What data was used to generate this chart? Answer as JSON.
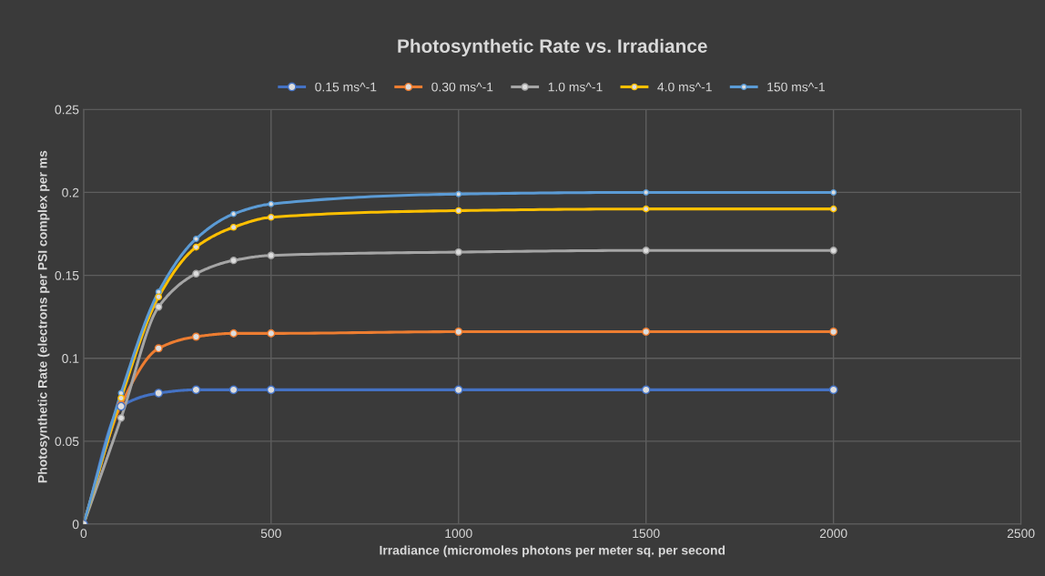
{
  "chart_data": {
    "type": "line",
    "title": "Photosynthetic Rate vs. Irradiance",
    "xlabel": "Irradiance (micromoles photons per meter sq. per second",
    "ylabel": "Photosynthetic Rate (electrons per PSI complex per ms",
    "x": [
      0,
      100,
      200,
      300,
      400,
      500,
      1000,
      1500,
      2000
    ],
    "series": [
      {
        "name": "0.15 ms^-1",
        "color": "#4472c4",
        "values": [
          0,
          0.071,
          0.079,
          0.081,
          0.081,
          0.081,
          0.081,
          0.081,
          0.081
        ]
      },
      {
        "name": "0.30 ms^-1",
        "color": "#ed7d31",
        "values": [
          0,
          0.072,
          0.106,
          0.113,
          0.115,
          0.115,
          0.116,
          0.116,
          0.116
        ]
      },
      {
        "name": "1.0 ms^-1",
        "color": "#a5a5a5",
        "values": [
          0,
          0.064,
          0.131,
          0.151,
          0.159,
          0.162,
          0.164,
          0.165,
          0.165
        ]
      },
      {
        "name": "4.0 ms^-1",
        "color": "#ffc000",
        "values": [
          0,
          0.076,
          0.137,
          0.167,
          0.179,
          0.185,
          0.189,
          0.19,
          0.19
        ]
      },
      {
        "name": "150 ms^-1",
        "color": "#5b9bd5",
        "values": [
          0,
          0.079,
          0.14,
          0.172,
          0.187,
          0.193,
          0.199,
          0.2,
          0.2
        ]
      }
    ],
    "xlim": [
      0,
      2500
    ],
    "xticks": [
      0,
      500,
      1000,
      1500,
      2000,
      2500
    ],
    "ylim": [
      0,
      0.25
    ],
    "yticks": [
      0,
      0.05,
      0.1,
      0.15,
      0.2,
      0.25
    ],
    "grid": true,
    "legend": "top",
    "marker": "circle",
    "line_style": "solid"
  }
}
